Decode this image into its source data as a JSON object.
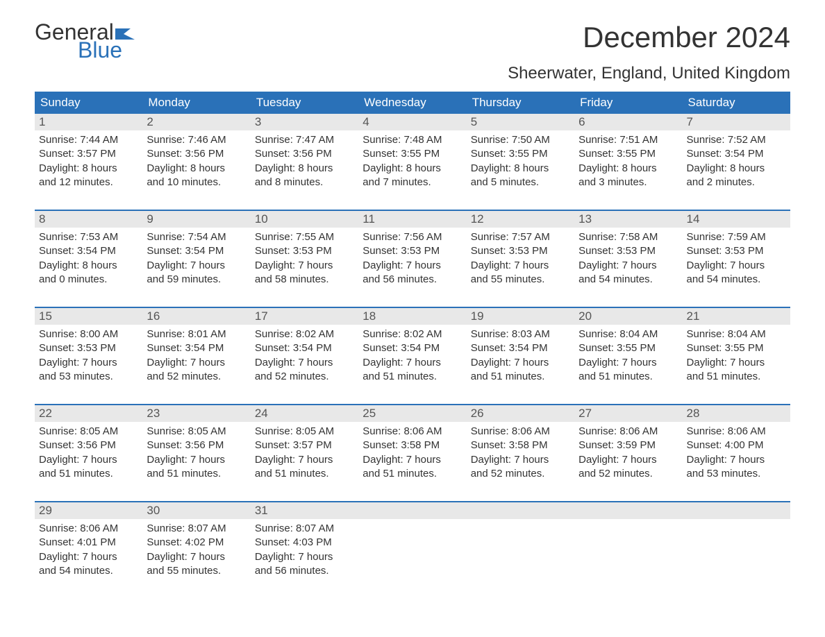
{
  "logo": {
    "word1": "General",
    "word2": "Blue"
  },
  "title": "December 2024",
  "location": "Sheerwater, England, United Kingdom",
  "colors": {
    "header_bg": "#2a71b8",
    "header_text": "#ffffff",
    "daynum_bg": "#e8e8e8",
    "text": "#333333",
    "accent": "#2a71b8"
  },
  "day_headers": [
    "Sunday",
    "Monday",
    "Tuesday",
    "Wednesday",
    "Thursday",
    "Friday",
    "Saturday"
  ],
  "weeks": [
    [
      {
        "n": "1",
        "sunrise": "7:44 AM",
        "sunset": "3:57 PM",
        "dl1": "8 hours",
        "dl2": "and 12 minutes."
      },
      {
        "n": "2",
        "sunrise": "7:46 AM",
        "sunset": "3:56 PM",
        "dl1": "8 hours",
        "dl2": "and 10 minutes."
      },
      {
        "n": "3",
        "sunrise": "7:47 AM",
        "sunset": "3:56 PM",
        "dl1": "8 hours",
        "dl2": "and 8 minutes."
      },
      {
        "n": "4",
        "sunrise": "7:48 AM",
        "sunset": "3:55 PM",
        "dl1": "8 hours",
        "dl2": "and 7 minutes."
      },
      {
        "n": "5",
        "sunrise": "7:50 AM",
        "sunset": "3:55 PM",
        "dl1": "8 hours",
        "dl2": "and 5 minutes."
      },
      {
        "n": "6",
        "sunrise": "7:51 AM",
        "sunset": "3:55 PM",
        "dl1": "8 hours",
        "dl2": "and 3 minutes."
      },
      {
        "n": "7",
        "sunrise": "7:52 AM",
        "sunset": "3:54 PM",
        "dl1": "8 hours",
        "dl2": "and 2 minutes."
      }
    ],
    [
      {
        "n": "8",
        "sunrise": "7:53 AM",
        "sunset": "3:54 PM",
        "dl1": "8 hours",
        "dl2": "and 0 minutes."
      },
      {
        "n": "9",
        "sunrise": "7:54 AM",
        "sunset": "3:54 PM",
        "dl1": "7 hours",
        "dl2": "and 59 minutes."
      },
      {
        "n": "10",
        "sunrise": "7:55 AM",
        "sunset": "3:53 PM",
        "dl1": "7 hours",
        "dl2": "and 58 minutes."
      },
      {
        "n": "11",
        "sunrise": "7:56 AM",
        "sunset": "3:53 PM",
        "dl1": "7 hours",
        "dl2": "and 56 minutes."
      },
      {
        "n": "12",
        "sunrise": "7:57 AM",
        "sunset": "3:53 PM",
        "dl1": "7 hours",
        "dl2": "and 55 minutes."
      },
      {
        "n": "13",
        "sunrise": "7:58 AM",
        "sunset": "3:53 PM",
        "dl1": "7 hours",
        "dl2": "and 54 minutes."
      },
      {
        "n": "14",
        "sunrise": "7:59 AM",
        "sunset": "3:53 PM",
        "dl1": "7 hours",
        "dl2": "and 54 minutes."
      }
    ],
    [
      {
        "n": "15",
        "sunrise": "8:00 AM",
        "sunset": "3:53 PM",
        "dl1": "7 hours",
        "dl2": "and 53 minutes."
      },
      {
        "n": "16",
        "sunrise": "8:01 AM",
        "sunset": "3:54 PM",
        "dl1": "7 hours",
        "dl2": "and 52 minutes."
      },
      {
        "n": "17",
        "sunrise": "8:02 AM",
        "sunset": "3:54 PM",
        "dl1": "7 hours",
        "dl2": "and 52 minutes."
      },
      {
        "n": "18",
        "sunrise": "8:02 AM",
        "sunset": "3:54 PM",
        "dl1": "7 hours",
        "dl2": "and 51 minutes."
      },
      {
        "n": "19",
        "sunrise": "8:03 AM",
        "sunset": "3:54 PM",
        "dl1": "7 hours",
        "dl2": "and 51 minutes."
      },
      {
        "n": "20",
        "sunrise": "8:04 AM",
        "sunset": "3:55 PM",
        "dl1": "7 hours",
        "dl2": "and 51 minutes."
      },
      {
        "n": "21",
        "sunrise": "8:04 AM",
        "sunset": "3:55 PM",
        "dl1": "7 hours",
        "dl2": "and 51 minutes."
      }
    ],
    [
      {
        "n": "22",
        "sunrise": "8:05 AM",
        "sunset": "3:56 PM",
        "dl1": "7 hours",
        "dl2": "and 51 minutes."
      },
      {
        "n": "23",
        "sunrise": "8:05 AM",
        "sunset": "3:56 PM",
        "dl1": "7 hours",
        "dl2": "and 51 minutes."
      },
      {
        "n": "24",
        "sunrise": "8:05 AM",
        "sunset": "3:57 PM",
        "dl1": "7 hours",
        "dl2": "and 51 minutes."
      },
      {
        "n": "25",
        "sunrise": "8:06 AM",
        "sunset": "3:58 PM",
        "dl1": "7 hours",
        "dl2": "and 51 minutes."
      },
      {
        "n": "26",
        "sunrise": "8:06 AM",
        "sunset": "3:58 PM",
        "dl1": "7 hours",
        "dl2": "and 52 minutes."
      },
      {
        "n": "27",
        "sunrise": "8:06 AM",
        "sunset": "3:59 PM",
        "dl1": "7 hours",
        "dl2": "and 52 minutes."
      },
      {
        "n": "28",
        "sunrise": "8:06 AM",
        "sunset": "4:00 PM",
        "dl1": "7 hours",
        "dl2": "and 53 minutes."
      }
    ],
    [
      {
        "n": "29",
        "sunrise": "8:06 AM",
        "sunset": "4:01 PM",
        "dl1": "7 hours",
        "dl2": "and 54 minutes."
      },
      {
        "n": "30",
        "sunrise": "8:07 AM",
        "sunset": "4:02 PM",
        "dl1": "7 hours",
        "dl2": "and 55 minutes."
      },
      {
        "n": "31",
        "sunrise": "8:07 AM",
        "sunset": "4:03 PM",
        "dl1": "7 hours",
        "dl2": "and 56 minutes."
      },
      null,
      null,
      null,
      null
    ]
  ],
  "labels": {
    "sunrise": "Sunrise:",
    "sunset": "Sunset:",
    "daylight": "Daylight:"
  }
}
